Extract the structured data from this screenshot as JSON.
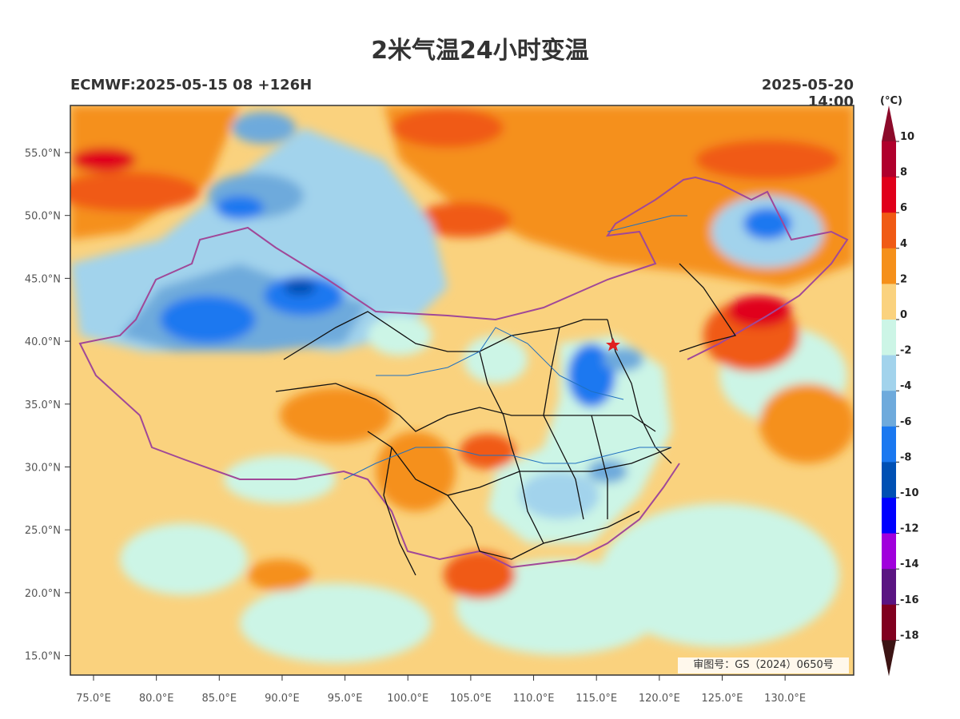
{
  "title": "2米气温24小时变温",
  "model_info": "ECMWF:2025-05-15 08 +126H",
  "valid_time": "2025-05-20 14:00",
  "approval": "审图号：GS（2024）0650号",
  "colorbar": {
    "unit": "(°C)",
    "ticks": [
      "10",
      "8",
      "6",
      "4",
      "2",
      "0",
      "-2",
      "-4",
      "-6",
      "-8",
      "-10",
      "-12",
      "-14",
      "-16",
      "-18"
    ],
    "colors": [
      "#b0002c",
      "#e0001a",
      "#f05a14",
      "#f5901a",
      "#fad27e",
      "#ccf5e6",
      "#a2d3ec",
      "#6eaadc",
      "#1a78f0",
      "#0050b4",
      "#0000ff",
      "#a000dc",
      "#5a1482",
      "#80001e"
    ],
    "top_arrow_color": "#8c0a2a",
    "bottom_arrow_color": "#3c1414"
  },
  "axes": {
    "lat_labels": [
      "55.0°N",
      "50.0°N",
      "45.0°N",
      "40.0°N",
      "35.0°N",
      "30.0°N",
      "25.0°N",
      "20.0°N",
      "15.0°N"
    ],
    "lon_labels": [
      "75.0°E",
      "80.0°E",
      "85.0°E",
      "90.0°E",
      "95.0°E",
      "100.0°E",
      "105.0°E",
      "110.0°E",
      "115.0°E",
      "120.0°E",
      "125.0°E",
      "130.0°E"
    ]
  },
  "marker": {
    "name": "Beijing",
    "color": "#e02020"
  }
}
